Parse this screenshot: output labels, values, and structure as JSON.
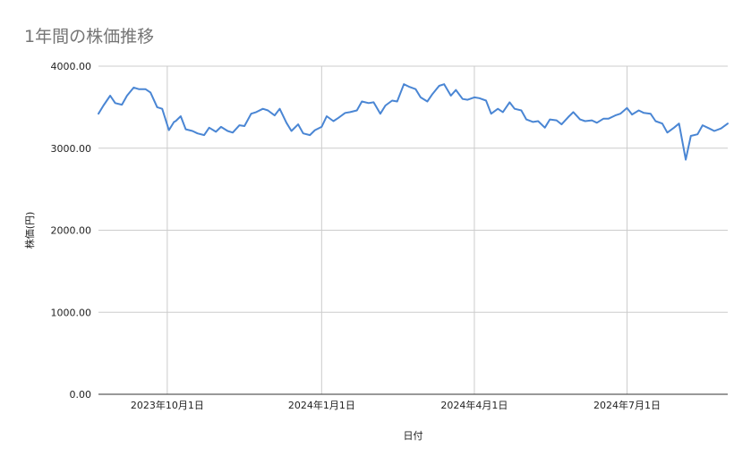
{
  "chart_data": {
    "type": "line",
    "title": "1年間の株価推移",
    "xlabel": "日付",
    "ylabel": "株価(円)",
    "ylim": [
      0,
      4000
    ],
    "y_ticks": [
      "0.00",
      "1000.00",
      "2000.00",
      "3000.00",
      "4000.00"
    ],
    "x_range": [
      "2023-08-21",
      "2024-08-30"
    ],
    "x_ticks": [
      {
        "date": "2023-10-01",
        "label": "2023年10月1日"
      },
      {
        "date": "2024-01-01",
        "label": "2024年1月1日"
      },
      {
        "date": "2024-04-01",
        "label": "2024年4月1日"
      },
      {
        "date": "2024-07-01",
        "label": "2024年7月1日"
      }
    ],
    "grid": true,
    "legend": "none",
    "line_color": "#4a86d4",
    "grid_color": "#cccccc",
    "series": [
      {
        "x": [
          "2023-08-21",
          "2023-08-24",
          "2023-08-28",
          "2023-08-31",
          "2023-09-04",
          "2023-09-07",
          "2023-09-11",
          "2023-09-14",
          "2023-09-18",
          "2023-09-21",
          "2023-09-25",
          "2023-09-28",
          "2023-10-02",
          "2023-10-05",
          "2023-10-06",
          "2023-10-09",
          "2023-10-12",
          "2023-10-16",
          "2023-10-19",
          "2023-10-23",
          "2023-10-26",
          "2023-10-30",
          "2023-11-02",
          "2023-11-06",
          "2023-11-09",
          "2023-11-13",
          "2023-11-16",
          "2023-11-20",
          "2023-11-23",
          "2023-11-27",
          "2023-11-30",
          "2023-12-04",
          "2023-12-07",
          "2023-12-11",
          "2023-12-14",
          "2023-12-18",
          "2023-12-21",
          "2023-12-25",
          "2023-12-28",
          "2024-01-01",
          "2024-01-04",
          "2024-01-08",
          "2024-01-11",
          "2024-01-15",
          "2024-01-18",
          "2024-01-22",
          "2024-01-25",
          "2024-01-29",
          "2024-02-01",
          "2024-02-05",
          "2024-02-08",
          "2024-02-12",
          "2024-02-15",
          "2024-02-19",
          "2024-02-22",
          "2024-02-26",
          "2024-02-29",
          "2024-03-04",
          "2024-03-07",
          "2024-03-11",
          "2024-03-14",
          "2024-03-18",
          "2024-03-21",
          "2024-03-25",
          "2024-03-28",
          "2024-04-01",
          "2024-04-04",
          "2024-04-08",
          "2024-04-11",
          "2024-04-15",
          "2024-04-18",
          "2024-04-22",
          "2024-04-25",
          "2024-04-29",
          "2024-05-02",
          "2024-05-06",
          "2024-05-09",
          "2024-05-13",
          "2024-05-16",
          "2024-05-20",
          "2024-05-23",
          "2024-05-27",
          "2024-05-30",
          "2024-06-03",
          "2024-06-06",
          "2024-06-10",
          "2024-06-13",
          "2024-06-17",
          "2024-06-20",
          "2024-06-24",
          "2024-06-27",
          "2024-07-01",
          "2024-07-04",
          "2024-07-08",
          "2024-07-11",
          "2024-07-15",
          "2024-07-18",
          "2024-07-22",
          "2024-07-25",
          "2024-07-29",
          "2024-08-01",
          "2024-08-05",
          "2024-08-08",
          "2024-08-12",
          "2024-08-15",
          "2024-08-19",
          "2024-08-22",
          "2024-08-26",
          "2024-08-30"
        ],
        "y": [
          3420,
          3520,
          3640,
          3550,
          3530,
          3640,
          3740,
          3720,
          3720,
          3680,
          3500,
          3480,
          3220,
          3320,
          3330,
          3390,
          3230,
          3210,
          3180,
          3160,
          3250,
          3200,
          3260,
          3210,
          3190,
          3280,
          3270,
          3420,
          3440,
          3480,
          3460,
          3400,
          3480,
          3310,
          3210,
          3290,
          3180,
          3160,
          3220,
          3260,
          3390,
          3330,
          3370,
          3430,
          3440,
          3460,
          3570,
          3550,
          3560,
          3420,
          3520,
          3580,
          3570,
          3780,
          3750,
          3720,
          3620,
          3570,
          3660,
          3760,
          3780,
          3640,
          3710,
          3600,
          3590,
          3620,
          3610,
          3580,
          3420,
          3480,
          3440,
          3560,
          3480,
          3460,
          3350,
          3320,
          3330,
          3250,
          3350,
          3340,
          3290,
          3380,
          3440,
          3350,
          3330,
          3340,
          3310,
          3360,
          3360,
          3400,
          3420,
          3490,
          3410,
          3460,
          3430,
          3420,
          3330,
          3300,
          3190,
          3250,
          3300,
          2860,
          3150,
          3170,
          3280,
          3240,
          3210,
          3240,
          3300
        ]
      }
    ]
  }
}
